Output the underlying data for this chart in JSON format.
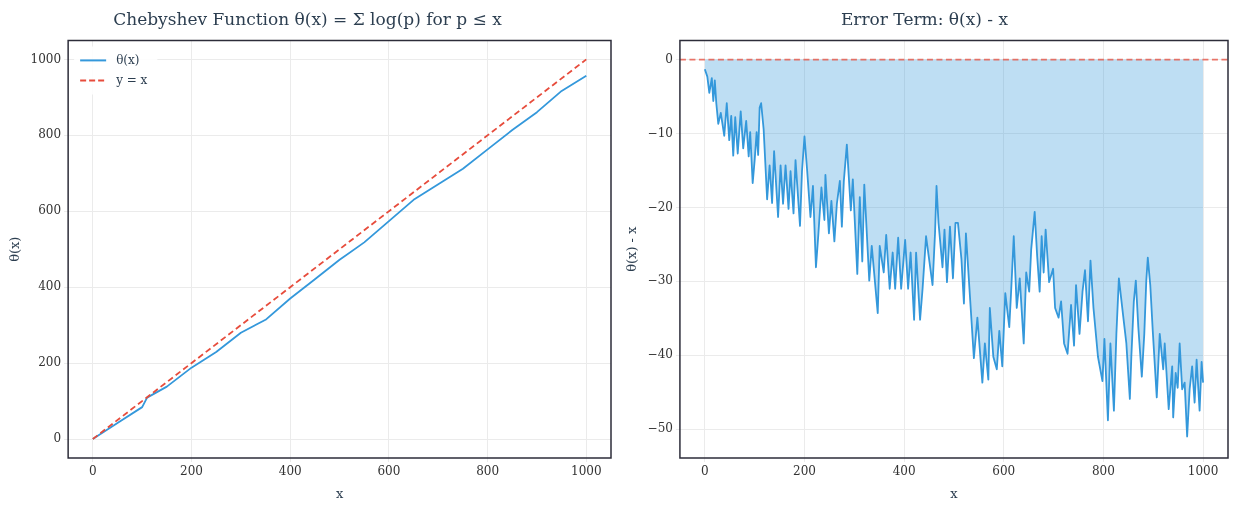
{
  "chart_data": [
    {
      "type": "line",
      "title": "Chebyshev Function θ(x) = Σ log(p) for p ≤ x",
      "xlabel": "x",
      "ylabel": "θ(x)",
      "xlim": [
        -50,
        1050
      ],
      "ylim": [
        -50,
        1050
      ],
      "xticks": [
        0,
        200,
        400,
        600,
        800,
        1000
      ],
      "yticks": [
        0,
        200,
        400,
        600,
        800,
        1000
      ],
      "grid": true,
      "legend": "top left",
      "series": [
        {
          "name": "θ(x)",
          "color": "#3498db",
          "line_style": "solid",
          "x": [
            0,
            50,
            100,
            110,
            150,
            200,
            250,
            300,
            350,
            400,
            450,
            500,
            550,
            600,
            650,
            700,
            750,
            800,
            850,
            900,
            950,
            1000
          ],
          "values": [
            0,
            42,
            84,
            109,
            138,
            188,
            229,
            280,
            314,
            370,
            421,
            472,
            518,
            574,
            630,
            671,
            712,
            763,
            814,
            861,
            917,
            957
          ]
        },
        {
          "name": "y = x",
          "color": "#e74c3c",
          "line_style": "dashed",
          "x": [
            0,
            1000
          ],
          "values": [
            0,
            1000
          ]
        }
      ]
    },
    {
      "type": "area",
      "title": "Error Term: θ(x) - x",
      "xlabel": "x",
      "ylabel": "θ(x) - x",
      "xlim": [
        -50,
        1050
      ],
      "ylim": [
        -53.9,
        2.6
      ],
      "xticks": [
        0,
        200,
        400,
        600,
        800,
        1000
      ],
      "yticks": [
        -50,
        -40,
        -30,
        -20,
        -10,
        0
      ],
      "grid": true,
      "ref_lines": [
        {
          "axis": "y",
          "value": 0,
          "color": "#e74c3c",
          "line_style": "dashed"
        }
      ],
      "series": [
        {
          "color": "#3498db",
          "x": [
            0,
            5,
            9,
            14,
            17,
            20,
            23,
            27,
            32,
            39,
            44,
            49,
            53,
            57,
            61,
            66,
            72,
            77,
            83,
            88,
            91,
            96,
            100,
            104,
            107,
            110,
            113,
            118,
            125,
            130,
            135,
            139,
            147,
            152,
            157,
            162,
            168,
            172,
            178,
            182,
            191,
            195,
            200,
            205,
            212,
            217,
            223,
            228,
            234,
            240,
            242,
            249,
            254,
            260,
            265,
            271,
            275,
            279,
            285,
            293,
            297,
            306,
            311,
            316,
            320,
            330,
            335,
            347,
            351,
            359,
            364,
            371,
            377,
            382,
            388,
            394,
            402,
            408,
            413,
            420,
            424,
            432,
            437,
            444,
            457,
            462,
            465,
            469,
            477,
            481,
            486,
            492,
            498,
            503,
            508,
            515,
            520,
            524,
            540,
            547,
            557,
            562,
            569,
            572,
            579,
            586,
            591,
            597,
            603,
            611,
            615,
            620,
            626,
            632,
            640,
            645,
            651,
            655,
            662,
            667,
            672,
            676,
            680,
            684,
            691,
            699,
            703,
            710,
            715,
            721,
            728,
            735,
            741,
            745,
            752,
            758,
            763,
            769,
            774,
            780,
            789,
            798,
            802,
            809,
            814,
            821,
            826,
            831,
            840,
            846,
            853,
            856,
            861,
            865,
            870,
            877,
            882,
            886,
            889,
            894,
            899,
            907,
            913,
            920,
            923,
            931,
            938,
            940,
            945,
            949,
            953,
            958,
            963,
            968,
            973,
            978,
            983,
            987,
            993,
            997,
            1000
          ],
          "values": [
            -1.3,
            -2.3,
            -4.5,
            -2.5,
            -5.6,
            -2.8,
            -5.9,
            -8.7,
            -7.2,
            -10.3,
            -5.9,
            -10.9,
            -7.6,
            -13,
            -7.8,
            -12.7,
            -7,
            -12,
            -8.3,
            -13.1,
            -9.8,
            -16.7,
            -13.6,
            -9.8,
            -12.9,
            -6.5,
            -5.9,
            -9.4,
            -18.9,
            -14.3,
            -19.4,
            -12.4,
            -21.3,
            -14.3,
            -19.5,
            -14.3,
            -20.2,
            -15.1,
            -20.8,
            -13.6,
            -22.5,
            -15.1,
            -10.4,
            -14.7,
            -21.3,
            -17.1,
            -28.1,
            -23.5,
            -17.3,
            -21.7,
            -15.6,
            -23.5,
            -19.1,
            -24.6,
            -19.5,
            -16.4,
            -22.6,
            -16.4,
            -11.5,
            -20.4,
            -16.2,
            -29,
            -18.6,
            -27.3,
            -16.9,
            -29.9,
            -25.2,
            -34.3,
            -25.2,
            -28.8,
            -23.7,
            -31,
            -26.1,
            -31,
            -24.1,
            -31,
            -24.4,
            -31,
            -26.1,
            -35.2,
            -26.1,
            -35.2,
            -31,
            -23.9,
            -30.5,
            -23.5,
            -17.1,
            -22.1,
            -28.1,
            -23,
            -30.1,
            -22.6,
            -29.6,
            -22.1,
            -22.1,
            -27,
            -33,
            -23.5,
            -40.4,
            -34.9,
            -43.7,
            -38.4,
            -43.3,
            -33.6,
            -40.2,
            -41.9,
            -36.7,
            -41.5,
            -31.6,
            -36.2,
            -31,
            -23.9,
            -33.6,
            -29.6,
            -38.4,
            -28.8,
            -31.4,
            -25.7,
            -20.6,
            -26.6,
            -31.4,
            -23.9,
            -28.8,
            -23,
            -30.1,
            -28.3,
            -33.6,
            -34.9,
            -32.7,
            -38.4,
            -39.8,
            -33.2,
            -38.7,
            -30.5,
            -37.1,
            -31.4,
            -28.5,
            -35.4,
            -27.2,
            -33.6,
            -40.2,
            -43.5,
            -37.8,
            -48.8,
            -38.4,
            -47.5,
            -37.1,
            -29.6,
            -34.9,
            -38.4,
            -45.9,
            -40.2,
            -32.7,
            -29.9,
            -36.2,
            -42.9,
            -37.1,
            -29.9,
            -26.8,
            -30.5,
            -36.7,
            -45.7,
            -37.1,
            -41.9,
            -38.4,
            -47.3,
            -41.5,
            -48.4,
            -42.4,
            -44.4,
            -38.4,
            -44.6,
            -43.7,
            -51,
            -44.6,
            -41.5,
            -46.4,
            -40.6,
            -47.5,
            -40.9,
            -43.7
          ]
        }
      ]
    }
  ]
}
